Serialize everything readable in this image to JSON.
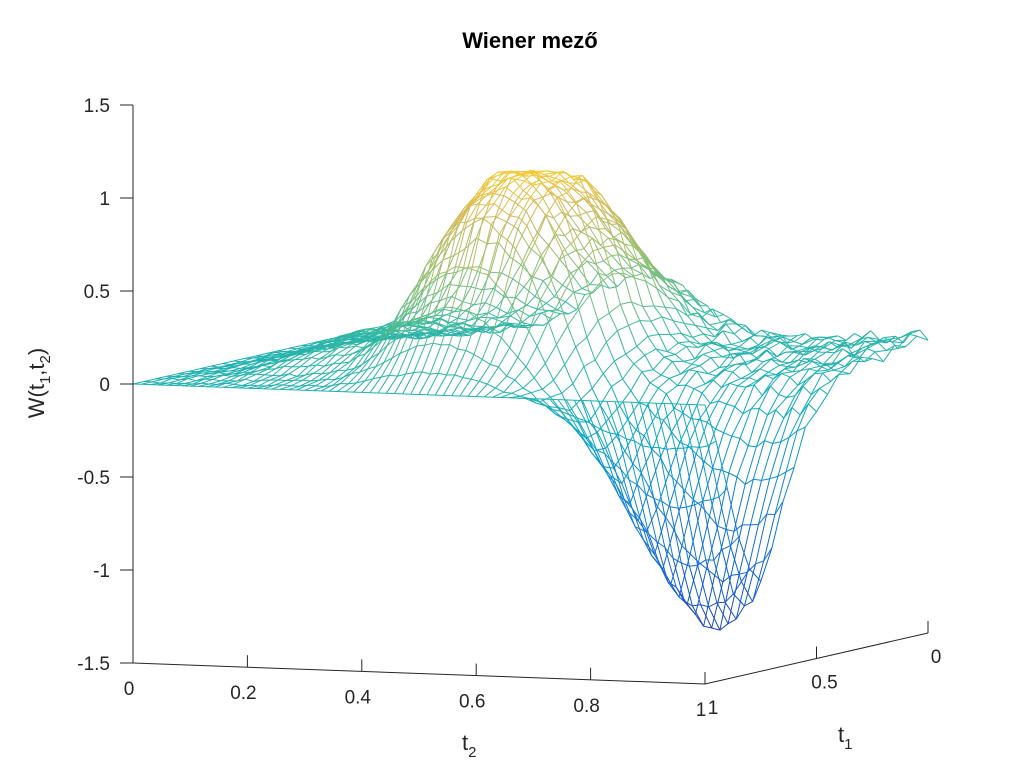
{
  "chart_data": {
    "type": "surface",
    "title": "Wiener mező",
    "zlabel": {
      "main": "W(t",
      "sub1": "1",
      "comma": ",t",
      "sub2": "2",
      "close": ")"
    },
    "xlabel": {
      "main": "t",
      "sub": "2"
    },
    "ylabel": {
      "main": "t",
      "sub": "1"
    },
    "zlim": [
      -1.5,
      1.5
    ],
    "z_ticks": [
      {
        "value": 1.5,
        "label": "1.5"
      },
      {
        "value": 1,
        "label": "1"
      },
      {
        "value": 0.5,
        "label": "0.5"
      },
      {
        "value": 0,
        "label": "0"
      },
      {
        "value": -0.5,
        "label": "-0.5"
      },
      {
        "value": -1,
        "label": "-1"
      },
      {
        "value": -1.5,
        "label": "-1.5"
      }
    ],
    "t2_ticks": [
      {
        "value": 0,
        "label": "0"
      },
      {
        "value": 0.2,
        "label": "0.2"
      },
      {
        "value": 0.4,
        "label": "0.4"
      },
      {
        "value": 0.6,
        "label": "0.6"
      },
      {
        "value": 0.8,
        "label": "0.8"
      },
      {
        "value": 1,
        "label": "1"
      }
    ],
    "t1_ticks": [
      {
        "value": 0,
        "label": "0"
      },
      {
        "value": 0.5,
        "label": "0.5"
      },
      {
        "value": 1,
        "label": "1"
      }
    ],
    "colormap": "parula",
    "grid": false,
    "surface": {
      "style": "mesh",
      "t2_range": [
        0,
        1
      ],
      "t1_range": [
        0,
        1
      ],
      "peak": {
        "t1": 0.45,
        "t2": 0.6,
        "value": 1.3
      },
      "trough": {
        "t1": 0.15,
        "t2": 0.98,
        "value": -1.45
      }
    }
  }
}
